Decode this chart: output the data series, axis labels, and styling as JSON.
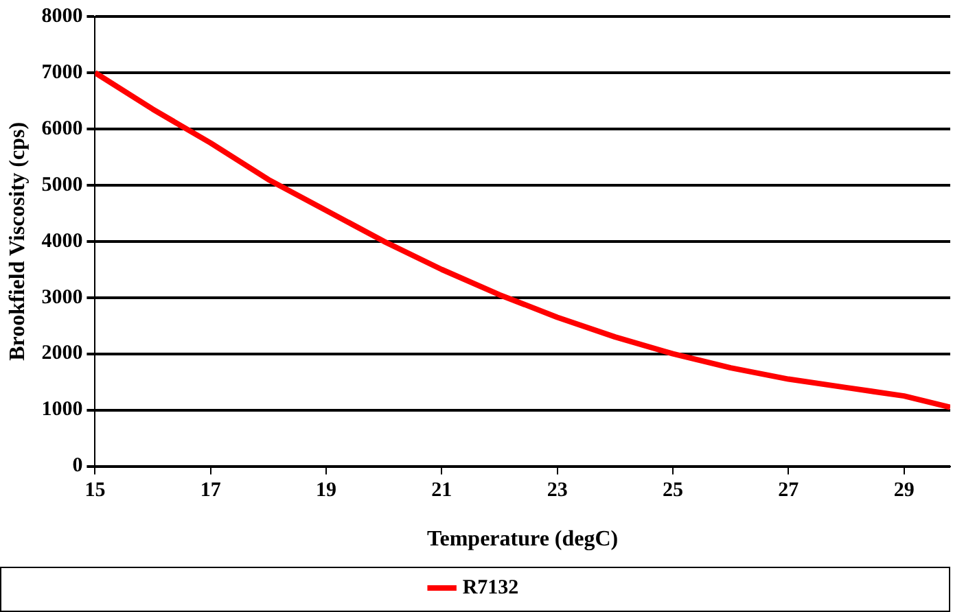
{
  "chart_data": {
    "type": "line",
    "xlabel": "Temperature (degC)",
    "ylabel": "Brookfield Viscosity (cps)",
    "x": [
      15,
      16,
      17,
      18,
      19,
      20,
      21,
      22,
      23,
      24,
      25,
      26,
      27,
      28,
      29,
      29.8
    ],
    "series": [
      {
        "name": "R7132",
        "color": "#ff0000",
        "values": [
          7000,
          6350,
          5750,
          5100,
          4550,
          4000,
          3500,
          3050,
          2650,
          2300,
          2000,
          1750,
          1550,
          1400,
          1250,
          1050
        ]
      }
    ],
    "xlim": [
      15,
      29.8
    ],
    "xticks": [
      15,
      17,
      19,
      21,
      23,
      25,
      27,
      29
    ],
    "ylim": [
      0,
      8000
    ],
    "yticks": [
      0,
      1000,
      2000,
      3000,
      4000,
      5000,
      6000,
      7000,
      8000
    ],
    "grid": "y",
    "legend": "bottom",
    "marker": "none",
    "line_style": "solid"
  }
}
